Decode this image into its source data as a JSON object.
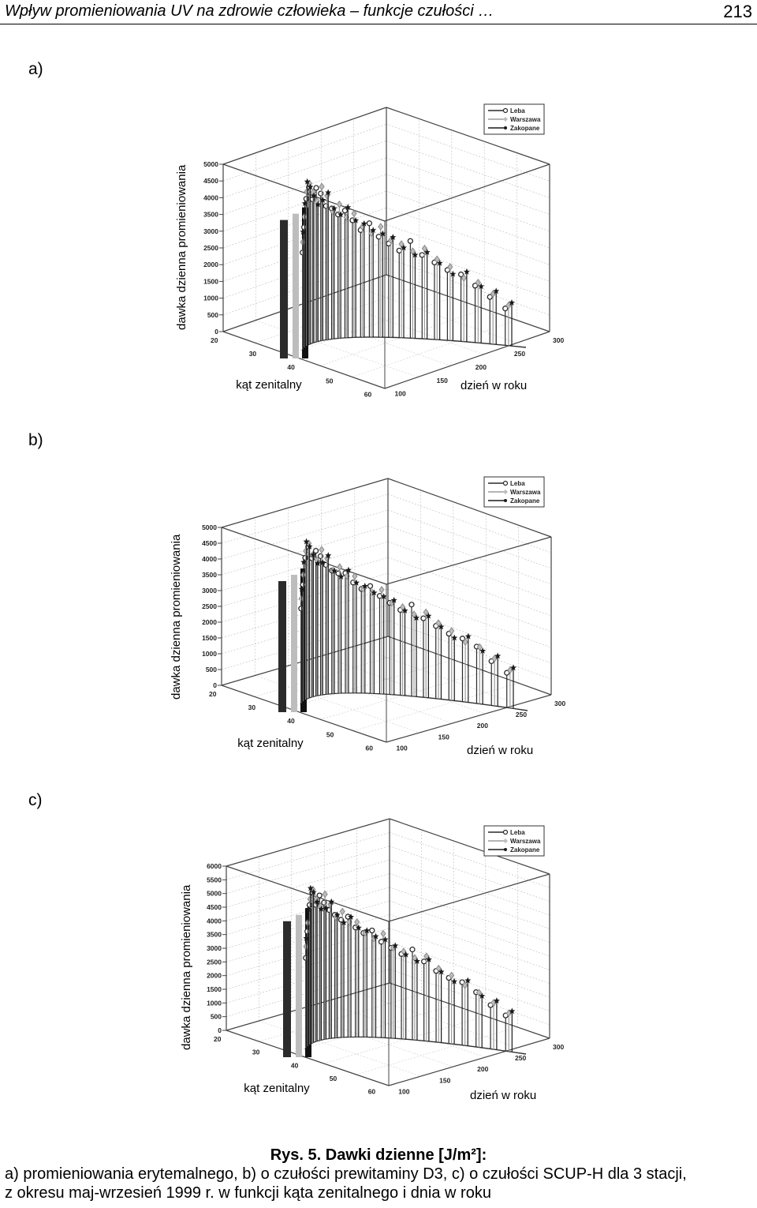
{
  "header": {
    "title": "Wpływ promieniowania UV na zdrowie człowieka – funkcje czułości …",
    "page_number": "213"
  },
  "chart_data": [
    {
      "type": "3d-stem",
      "panel_label": "a)",
      "ylabel": "dawka dzienna promieniowania",
      "xlabel": "kąt zenitalny",
      "zlabel": "dzień w roku",
      "y_ticks": [
        "0",
        "500",
        "1000",
        "1500",
        "2000",
        "2500",
        "3000",
        "3500",
        "4000",
        "4500",
        "5000"
      ],
      "x_ticks": [
        "20",
        "30",
        "40",
        "50",
        "60"
      ],
      "z_ticks": [
        "100",
        "150",
        "200",
        "250",
        "300"
      ],
      "ylim": [
        0,
        5000
      ],
      "legend": [
        "Leba",
        "Warszawa",
        "Zakopane"
      ],
      "legend_position": "top-right",
      "series": [
        {
          "name": "Leba",
          "values": [
            2900,
            3600,
            4400,
            4700,
            4300,
            4600,
            4400,
            4000,
            3900,
            3700,
            3800,
            3500,
            3200,
            3400,
            3000,
            2800,
            2600,
            2900,
            2500,
            2300,
            2100,
            2000,
            1700,
            1400,
            1100
          ]
        },
        {
          "name": "Warszawa",
          "values": [
            3200,
            3900,
            4600,
            4800,
            4500,
            4200,
            4600,
            4300,
            3800,
            4000,
            3600,
            3700,
            3300,
            3100,
            3300,
            2900,
            2800,
            2600,
            2700,
            2400,
            2200,
            1900,
            1800,
            1500,
            1200
          ]
        },
        {
          "name": "Zakopane",
          "values": [
            3500,
            4300,
            4900,
            4700,
            4400,
            4100,
            4200,
            4400,
            3900,
            3700,
            3900,
            3500,
            3400,
            3200,
            3100,
            3000,
            2700,
            2500,
            2600,
            2300,
            2000,
            2100,
            1700,
            1600,
            1300
          ]
        }
      ]
    },
    {
      "type": "3d-stem",
      "panel_label": "b)",
      "ylabel": "dawka dzienna promieniowania",
      "xlabel": "kąt zenitalny",
      "zlabel": "dzień w roku",
      "y_ticks": [
        "0",
        "500",
        "1000",
        "1500",
        "2000",
        "2500",
        "3000",
        "3500",
        "4000",
        "4500",
        "5000"
      ],
      "x_ticks": [
        "20",
        "30",
        "40",
        "50",
        "60"
      ],
      "z_ticks": [
        "100",
        "150",
        "200",
        "250",
        "300"
      ],
      "ylim": [
        0,
        5000
      ],
      "legend": [
        "Leba",
        "Warszawa",
        "Zakopane"
      ],
      "legend_position": "top-right",
      "series": [
        {
          "name": "Leba",
          "values": [
            3000,
            3700,
            4500,
            4800,
            4400,
            4600,
            4400,
            4100,
            3900,
            3800,
            3800,
            3500,
            3300,
            3400,
            3100,
            2900,
            2700,
            2900,
            2500,
            2300,
            2100,
            2000,
            1800,
            1400,
            1100
          ]
        },
        {
          "name": "Warszawa",
          "values": [
            3300,
            4000,
            4700,
            4900,
            4500,
            4300,
            4600,
            4300,
            3900,
            4000,
            3700,
            3700,
            3300,
            3200,
            3300,
            2900,
            2800,
            2600,
            2700,
            2400,
            2200,
            1900,
            1800,
            1500,
            1200
          ]
        },
        {
          "name": "Zakopane",
          "values": [
            3600,
            4400,
            5000,
            4800,
            4500,
            4200,
            4200,
            4400,
            3900,
            3700,
            3900,
            3500,
            3400,
            3200,
            3100,
            3000,
            2700,
            2500,
            2600,
            2300,
            2000,
            2100,
            1700,
            1600,
            1300
          ]
        }
      ]
    },
    {
      "type": "3d-stem",
      "panel_label": "c)",
      "ylabel": "dawka dzienna promieniowania",
      "xlabel": "kąt zenitalny",
      "zlabel": "dzień w roku",
      "y_ticks": [
        "0",
        "500",
        "1000",
        "1500",
        "2000",
        "2500",
        "3000",
        "3500",
        "4000",
        "4500",
        "5000",
        "5500",
        "6000"
      ],
      "x_ticks": [
        "20",
        "30",
        "40",
        "50",
        "60"
      ],
      "z_ticks": [
        "100",
        "150",
        "200",
        "250",
        "300"
      ],
      "ylim": [
        0,
        6000
      ],
      "legend": [
        "Leba",
        "Warszawa",
        "Zakopane"
      ],
      "legend_position": "top-right",
      "series": [
        {
          "name": "Leba",
          "values": [
            3300,
            4200,
            5100,
            5500,
            5000,
            5300,
            5000,
            4700,
            4500,
            4300,
            4400,
            4000,
            3800,
            3900,
            3500,
            3300,
            3100,
            3300,
            2900,
            2600,
            2400,
            2300,
            2000,
            1600,
            1300
          ]
        },
        {
          "name": "Warszawa",
          "values": [
            3700,
            4500,
            5300,
            5600,
            5200,
            4900,
            5300,
            4900,
            4400,
            4600,
            4200,
            4200,
            3800,
            3600,
            3800,
            3300,
            3200,
            3000,
            3100,
            2700,
            2500,
            2200,
            2000,
            1700,
            1400
          ]
        },
        {
          "name": "Zakopane",
          "values": [
            4000,
            5000,
            5700,
            5500,
            5100,
            4800,
            4800,
            5000,
            4500,
            4200,
            4400,
            4000,
            3900,
            3700,
            3600,
            3400,
            3100,
            2900,
            3000,
            2600,
            2300,
            2400,
            1900,
            1800,
            1500
          ]
        }
      ]
    }
  ],
  "caption": {
    "title": "Rys. 5. Dawki dzienne [J/m²]:",
    "line1": "a) promieniowania erytemalnego, b) o czułości prewitaminy  D3, c) o czułości SCUP-H dla 3 stacji,",
    "line2": "z okresu maj-wrzesień 1999 r. w funkcji kąta zenitalnego i dnia w roku"
  }
}
